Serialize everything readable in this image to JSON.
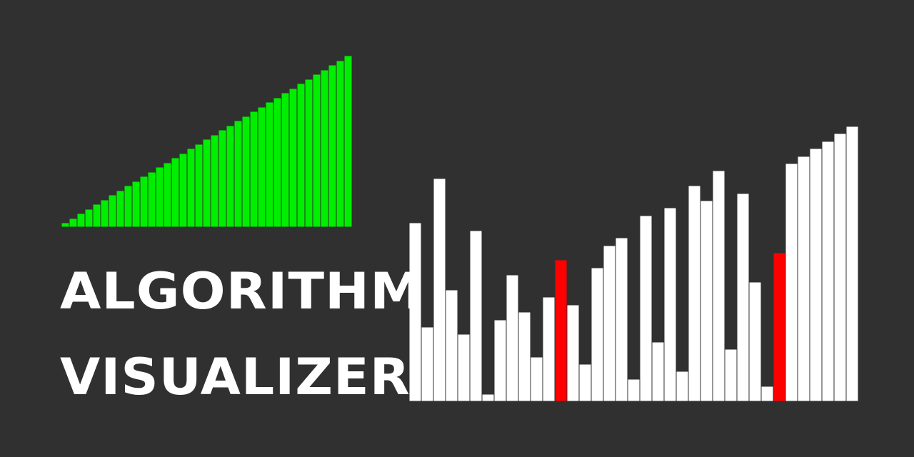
{
  "title": {
    "line1": "ALGORITHM",
    "line2": "VISUALIZER"
  },
  "colors": {
    "background": "#303030",
    "sorted": "#00ee00",
    "default": "#ffffff",
    "highlight": "#ff0000",
    "outline": "#303030"
  },
  "sorted_bars": {
    "values": [
      6,
      12,
      19,
      25,
      32,
      38,
      45,
      51,
      58,
      64,
      71,
      77,
      84,
      90,
      97,
      103,
      110,
      116,
      123,
      129,
      136,
      142,
      149,
      155,
      162,
      168,
      175,
      181,
      188,
      194,
      201,
      207,
      214,
      220,
      227,
      233,
      240
    ]
  },
  "unsorted_bars": {
    "values": [
      250,
      104,
      312,
      156,
      94,
      239,
      10,
      114,
      177,
      125,
      62,
      146,
      198,
      135,
      52,
      187,
      218,
      229,
      31,
      260,
      83,
      271,
      42,
      302,
      281,
      323,
      73,
      291,
      167,
      21,
      208,
      333,
      343,
      354,
      364,
      375,
      385
    ],
    "highlight_indices": [
      12,
      30
    ]
  }
}
